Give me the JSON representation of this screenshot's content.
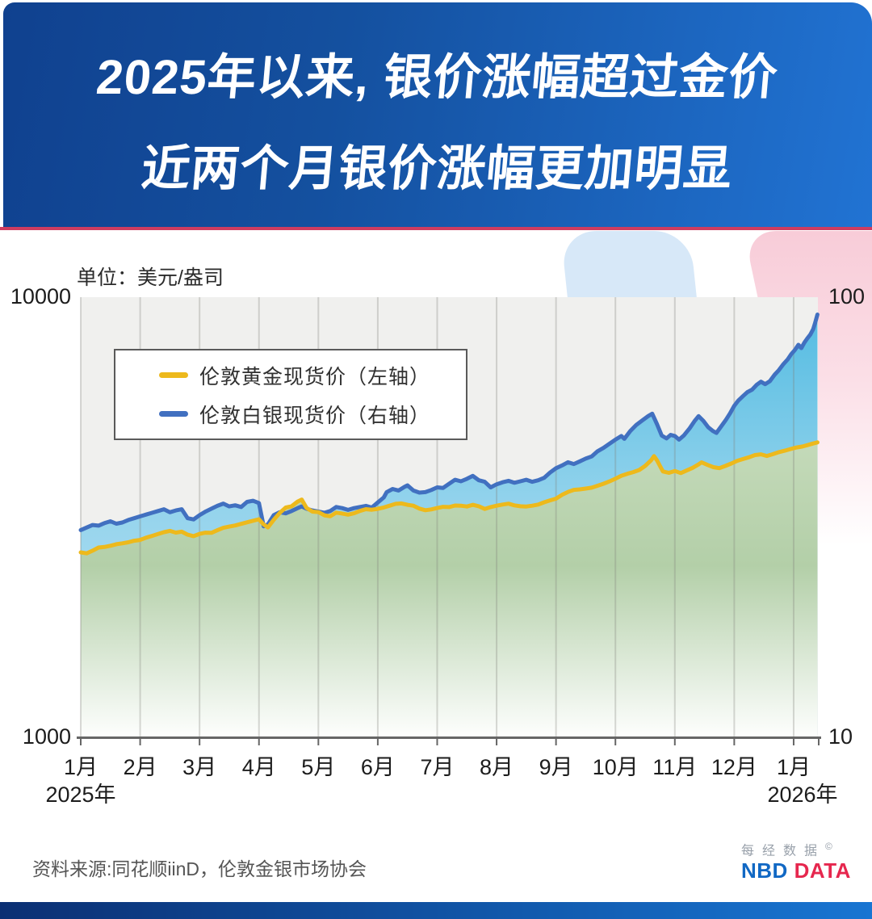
{
  "header": {
    "title_line1": "2025年以来, 银价涨幅超过金价",
    "title_line2": "近两个月银价涨幅更加明显"
  },
  "chart_data": {
    "type": "line",
    "title": "2025年以来, 银价涨幅超过金价 近两个月银价涨幅更加明显",
    "unit_label": "单位：美元/盎司",
    "x_unit": "months since 2025-01-01",
    "x_tick_labels": [
      "1月",
      "2月",
      "3月",
      "4月",
      "5月",
      "6月",
      "7月",
      "8月",
      "9月",
      "10月",
      "11月",
      "12月",
      "1月"
    ],
    "x_year_labels": [
      {
        "label": "2025年",
        "month_index": 0
      },
      {
        "label": "2026年",
        "month_index": 12.15
      }
    ],
    "left_axis": {
      "name": "黄金价格轴",
      "scale": "log",
      "min": 1000,
      "max": 10000,
      "top_label": "10000",
      "bottom_label": "1000"
    },
    "right_axis": {
      "name": "白银价格轴",
      "scale": "log",
      "min": 10,
      "max": 100,
      "top_label": "100",
      "bottom_label": "10"
    },
    "grid": "vertical-monthly",
    "legend_position": "upper-left-box",
    "colors": {
      "gold_line": "#EDB91C",
      "silver_line": "#4170C0",
      "gold_fill_top": "#B3CFA8",
      "silver_fill_top": "#55BCE2"
    },
    "legend": [
      {
        "label": "伦敦黄金现货价（左轴）",
        "color": "#EDB91C"
      },
      {
        "label": "伦敦白银现货价（右轴）",
        "color": "#4170C0"
      }
    ],
    "series": [
      {
        "name": "伦敦黄金现货价（左轴）",
        "axis": "left",
        "color": "#EDB91C",
        "points": [
          [
            0,
            2625
          ],
          [
            0.1,
            2612
          ],
          [
            0.2,
            2648
          ],
          [
            0.3,
            2692
          ],
          [
            0.4,
            2700
          ],
          [
            0.5,
            2718
          ],
          [
            0.6,
            2740
          ],
          [
            0.7,
            2752
          ],
          [
            0.8,
            2768
          ],
          [
            0.9,
            2790
          ],
          [
            1.0,
            2802
          ],
          [
            1.1,
            2835
          ],
          [
            1.2,
            2862
          ],
          [
            1.3,
            2890
          ],
          [
            1.4,
            2918
          ],
          [
            1.5,
            2938
          ],
          [
            1.6,
            2912
          ],
          [
            1.7,
            2925
          ],
          [
            1.8,
            2880
          ],
          [
            1.9,
            2858
          ],
          [
            2.0,
            2892
          ],
          [
            2.1,
            2910
          ],
          [
            2.2,
            2908
          ],
          [
            2.3,
            2948
          ],
          [
            2.4,
            2985
          ],
          [
            2.5,
            3005
          ],
          [
            2.6,
            3022
          ],
          [
            2.7,
            3048
          ],
          [
            2.85,
            3085
          ],
          [
            3.0,
            3122
          ],
          [
            3.08,
            3038
          ],
          [
            3.15,
            2992
          ],
          [
            3.25,
            3115
          ],
          [
            3.35,
            3228
          ],
          [
            3.45,
            3320
          ],
          [
            3.55,
            3342
          ],
          [
            3.65,
            3425
          ],
          [
            3.72,
            3462
          ],
          [
            3.8,
            3315
          ],
          [
            3.9,
            3250
          ],
          [
            4.0,
            3242
          ],
          [
            4.1,
            3188
          ],
          [
            4.2,
            3172
          ],
          [
            4.3,
            3232
          ],
          [
            4.4,
            3218
          ],
          [
            4.5,
            3198
          ],
          [
            4.6,
            3222
          ],
          [
            4.7,
            3262
          ],
          [
            4.8,
            3292
          ],
          [
            4.9,
            3282
          ],
          [
            5.0,
            3298
          ],
          [
            5.1,
            3322
          ],
          [
            5.2,
            3352
          ],
          [
            5.3,
            3385
          ],
          [
            5.4,
            3392
          ],
          [
            5.5,
            3368
          ],
          [
            5.6,
            3352
          ],
          [
            5.7,
            3302
          ],
          [
            5.8,
            3274
          ],
          [
            5.9,
            3288
          ],
          [
            6.0,
            3312
          ],
          [
            6.1,
            3332
          ],
          [
            6.2,
            3328
          ],
          [
            6.3,
            3356
          ],
          [
            6.4,
            3352
          ],
          [
            6.5,
            3338
          ],
          [
            6.6,
            3368
          ],
          [
            6.7,
            3342
          ],
          [
            6.8,
            3296
          ],
          [
            6.9,
            3328
          ],
          [
            7.0,
            3352
          ],
          [
            7.1,
            3372
          ],
          [
            7.2,
            3388
          ],
          [
            7.3,
            3358
          ],
          [
            7.4,
            3342
          ],
          [
            7.5,
            3338
          ],
          [
            7.6,
            3352
          ],
          [
            7.7,
            3372
          ],
          [
            7.8,
            3412
          ],
          [
            7.9,
            3448
          ],
          [
            8.0,
            3478
          ],
          [
            8.1,
            3548
          ],
          [
            8.2,
            3602
          ],
          [
            8.3,
            3642
          ],
          [
            8.4,
            3652
          ],
          [
            8.5,
            3668
          ],
          [
            8.6,
            3684
          ],
          [
            8.7,
            3722
          ],
          [
            8.8,
            3762
          ],
          [
            8.9,
            3808
          ],
          [
            9.0,
            3862
          ],
          [
            9.1,
            3922
          ],
          [
            9.2,
            3962
          ],
          [
            9.3,
            3998
          ],
          [
            9.4,
            4042
          ],
          [
            9.5,
            4128
          ],
          [
            9.6,
            4252
          ],
          [
            9.65,
            4348
          ],
          [
            9.7,
            4252
          ],
          [
            9.75,
            4128
          ],
          [
            9.8,
            4012
          ],
          [
            9.9,
            3982
          ],
          [
            10.0,
            4022
          ],
          [
            10.1,
            3978
          ],
          [
            10.2,
            4032
          ],
          [
            10.3,
            4088
          ],
          [
            10.4,
            4162
          ],
          [
            10.45,
            4208
          ],
          [
            10.55,
            4152
          ],
          [
            10.65,
            4102
          ],
          [
            10.75,
            4082
          ],
          [
            10.85,
            4128
          ],
          [
            10.95,
            4182
          ],
          [
            11.05,
            4242
          ],
          [
            11.15,
            4282
          ],
          [
            11.25,
            4322
          ],
          [
            11.35,
            4372
          ],
          [
            11.45,
            4388
          ],
          [
            11.55,
            4352
          ],
          [
            11.65,
            4392
          ],
          [
            11.75,
            4438
          ],
          [
            11.85,
            4472
          ],
          [
            11.95,
            4512
          ],
          [
            12.05,
            4548
          ],
          [
            12.15,
            4572
          ],
          [
            12.25,
            4612
          ],
          [
            12.32,
            4642
          ],
          [
            12.4,
            4672
          ]
        ]
      },
      {
        "name": "伦敦白银现货价（右轴）",
        "axis": "right",
        "color": "#4170C0",
        "points": [
          [
            0,
            29.5
          ],
          [
            0.1,
            29.9
          ],
          [
            0.2,
            30.3
          ],
          [
            0.3,
            30.2
          ],
          [
            0.4,
            30.6
          ],
          [
            0.5,
            30.9
          ],
          [
            0.6,
            30.5
          ],
          [
            0.7,
            30.7
          ],
          [
            0.8,
            31.1
          ],
          [
            0.9,
            31.4
          ],
          [
            1.0,
            31.7
          ],
          [
            1.1,
            32.0
          ],
          [
            1.2,
            32.3
          ],
          [
            1.3,
            32.6
          ],
          [
            1.4,
            32.9
          ],
          [
            1.5,
            32.4
          ],
          [
            1.6,
            32.7
          ],
          [
            1.7,
            32.9
          ],
          [
            1.8,
            31.4
          ],
          [
            1.9,
            31.2
          ],
          [
            2.0,
            31.9
          ],
          [
            2.1,
            32.5
          ],
          [
            2.2,
            33.0
          ],
          [
            2.3,
            33.5
          ],
          [
            2.4,
            33.9
          ],
          [
            2.5,
            33.4
          ],
          [
            2.6,
            33.6
          ],
          [
            2.7,
            33.3
          ],
          [
            2.8,
            34.2
          ],
          [
            2.9,
            34.4
          ],
          [
            3.0,
            34.0
          ],
          [
            3.08,
            30.1
          ],
          [
            3.15,
            30.4
          ],
          [
            3.25,
            31.9
          ],
          [
            3.35,
            32.4
          ],
          [
            3.45,
            32.2
          ],
          [
            3.55,
            32.6
          ],
          [
            3.65,
            33.1
          ],
          [
            3.72,
            33.4
          ],
          [
            3.8,
            33.0
          ],
          [
            3.9,
            32.7
          ],
          [
            4.0,
            32.5
          ],
          [
            4.1,
            32.3
          ],
          [
            4.2,
            32.6
          ],
          [
            4.3,
            33.3
          ],
          [
            4.4,
            33.1
          ],
          [
            4.5,
            32.8
          ],
          [
            4.6,
            33.1
          ],
          [
            4.7,
            33.3
          ],
          [
            4.8,
            33.5
          ],
          [
            4.9,
            33.2
          ],
          [
            5.0,
            34.1
          ],
          [
            5.1,
            35.0
          ],
          [
            5.15,
            36.0
          ],
          [
            5.25,
            36.6
          ],
          [
            5.35,
            36.3
          ],
          [
            5.45,
            37.0
          ],
          [
            5.5,
            37.3
          ],
          [
            5.6,
            36.3
          ],
          [
            5.7,
            35.9
          ],
          [
            5.8,
            36.0
          ],
          [
            5.9,
            36.4
          ],
          [
            6.0,
            36.9
          ],
          [
            6.1,
            36.8
          ],
          [
            6.2,
            37.6
          ],
          [
            6.3,
            38.4
          ],
          [
            6.4,
            38.1
          ],
          [
            6.5,
            38.6
          ],
          [
            6.6,
            39.2
          ],
          [
            6.7,
            38.3
          ],
          [
            6.8,
            38.0
          ],
          [
            6.9,
            36.9
          ],
          [
            7.0,
            37.5
          ],
          [
            7.1,
            37.9
          ],
          [
            7.2,
            38.2
          ],
          [
            7.3,
            37.8
          ],
          [
            7.4,
            38.1
          ],
          [
            7.5,
            38.4
          ],
          [
            7.6,
            38.0
          ],
          [
            7.7,
            38.3
          ],
          [
            7.8,
            38.8
          ],
          [
            7.9,
            39.9
          ],
          [
            8.0,
            40.8
          ],
          [
            8.1,
            41.4
          ],
          [
            8.2,
            42.1
          ],
          [
            8.3,
            41.7
          ],
          [
            8.4,
            42.3
          ],
          [
            8.5,
            42.9
          ],
          [
            8.6,
            43.4
          ],
          [
            8.7,
            44.6
          ],
          [
            8.8,
            45.4
          ],
          [
            8.9,
            46.4
          ],
          [
            9.0,
            47.4
          ],
          [
            9.1,
            48.3
          ],
          [
            9.15,
            47.6
          ],
          [
            9.25,
            49.6
          ],
          [
            9.35,
            51.2
          ],
          [
            9.45,
            52.4
          ],
          [
            9.55,
            53.6
          ],
          [
            9.62,
            54.3
          ],
          [
            9.7,
            51.4
          ],
          [
            9.78,
            48.4
          ],
          [
            9.86,
            47.7
          ],
          [
            9.93,
            48.6
          ],
          [
            10.0,
            48.3
          ],
          [
            10.07,
            47.4
          ],
          [
            10.15,
            48.4
          ],
          [
            10.25,
            50.3
          ],
          [
            10.33,
            52.2
          ],
          [
            10.4,
            53.6
          ],
          [
            10.48,
            52.3
          ],
          [
            10.56,
            50.6
          ],
          [
            10.64,
            49.6
          ],
          [
            10.7,
            49.1
          ],
          [
            10.78,
            50.8
          ],
          [
            10.86,
            52.6
          ],
          [
            10.93,
            54.4
          ],
          [
            11.0,
            56.6
          ],
          [
            11.07,
            58.2
          ],
          [
            11.15,
            59.6
          ],
          [
            11.22,
            60.8
          ],
          [
            11.3,
            61.6
          ],
          [
            11.38,
            63.2
          ],
          [
            11.45,
            64.2
          ],
          [
            11.52,
            63.4
          ],
          [
            11.6,
            64.4
          ],
          [
            11.68,
            66.6
          ],
          [
            11.75,
            68.2
          ],
          [
            11.82,
            70.2
          ],
          [
            11.9,
            72.2
          ],
          [
            11.96,
            74.2
          ],
          [
            12.02,
            75.8
          ],
          [
            12.08,
            77.9
          ],
          [
            12.13,
            76.6
          ],
          [
            12.18,
            78.8
          ],
          [
            12.23,
            80.6
          ],
          [
            12.28,
            82.2
          ],
          [
            12.33,
            84.6
          ],
          [
            12.36,
            87.2
          ],
          [
            12.4,
            91.3
          ]
        ]
      }
    ]
  },
  "footer": {
    "source": "资料来源:同花顺iinD，伦敦金银市场协会",
    "logo_cn": "每经数据",
    "logo_copyright": "©",
    "logo_nbd": "NBD",
    "logo_data": "DATA",
    "logo_nbd_color": "#1168c4",
    "logo_data_color": "#e6274e"
  }
}
